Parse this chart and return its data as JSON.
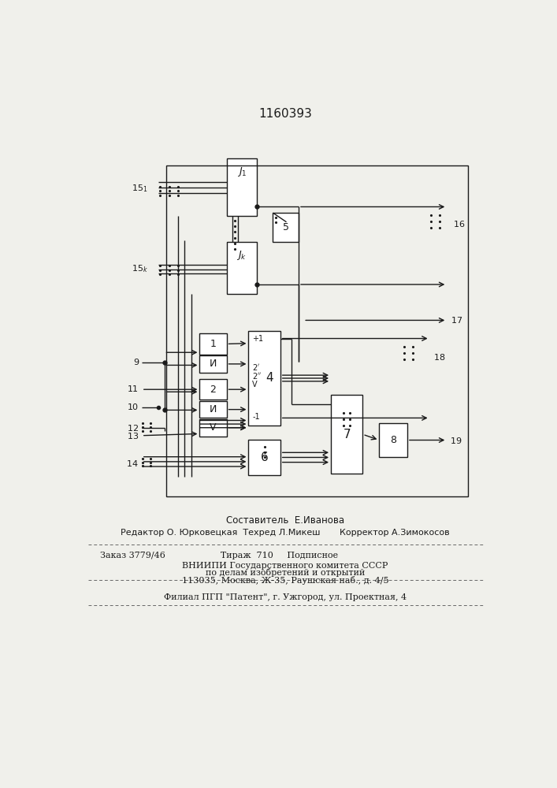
{
  "title": "1160393",
  "bg_color": "#f0f0eb",
  "line_color": "#1a1a1a",
  "box_color": "#ffffff",
  "font_size_title": 11,
  "footer_lines": [
    "Составитель  Е.Иванова",
    "Редактор О. Юрковецкая  Техред Л.Микеш       Корректор А.Зимокосов",
    "Заказ 3779/46                    Тираж  710     Подписное",
    "ВНИИПИ Государственного комитета СССР",
    "по делам изобретений и открытий",
    "113035, Москва, Ж-35, Раушская наб., д. 4/5",
    "Филиал ПГП \"Патент\", г. Ужгород, ул. Проектная, 4"
  ]
}
